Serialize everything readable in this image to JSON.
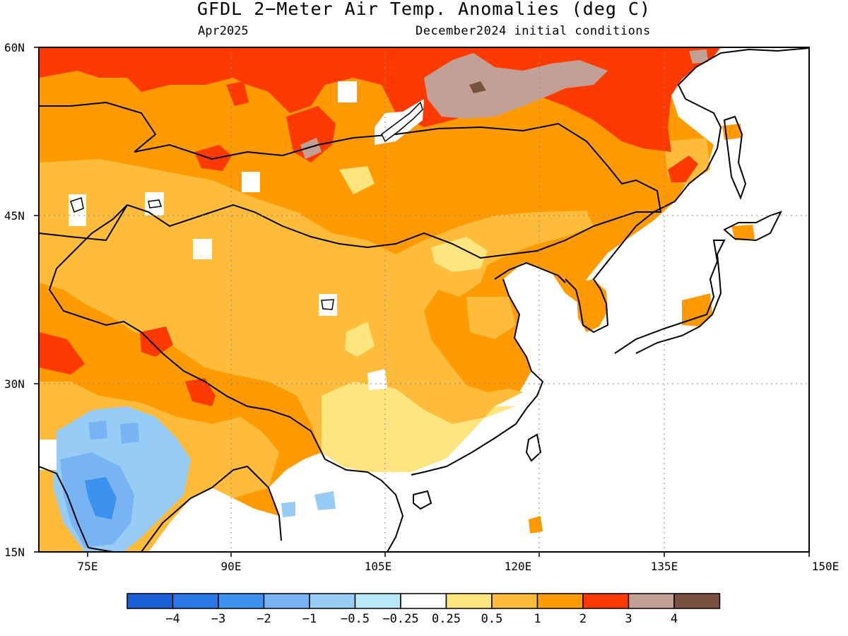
{
  "title": "GFDL 2−Meter Air Temp. Anomalies (deg C)",
  "subtitle_left": "Apr2025",
  "subtitle_right": "December2024 initial conditions",
  "lat_labels": [
    "60N",
    "45N",
    "30N",
    "15N"
  ],
  "lon_labels": [
    "75E",
    "90E",
    "105E",
    "120E",
    "135E",
    "150E"
  ],
  "colorbar": {
    "colors": [
      "#1a5fd6",
      "#2a78e8",
      "#3d92ef",
      "#78b4f4",
      "#97ccf6",
      "#b6eaf8",
      "#ffffff",
      "#ffe580",
      "#ffbc3a",
      "#ff9a00",
      "#ff3a00",
      "#c3a096",
      "#7a5040"
    ],
    "labels": [
      "−4",
      "−3",
      "−2",
      "−1",
      "−0.5",
      "−0.25",
      "0.25",
      "0.5",
      "1",
      "2",
      "3",
      "4"
    ]
  },
  "map_colors": {
    "land_base": "#ff9a00",
    "anom_0_5_1": "#ffbc3a",
    "anom_0_25_0_5": "#ffe580",
    "anom_2_3": "#ff3a00",
    "anom_3_4": "#c3a096",
    "anom_4_plus": "#7a5040",
    "anom_neg_0_5": "#97ccf6",
    "anom_neg_1": "#78b4f4",
    "anom_neg_2": "#3d92ef",
    "ocean": "#ffffff"
  }
}
